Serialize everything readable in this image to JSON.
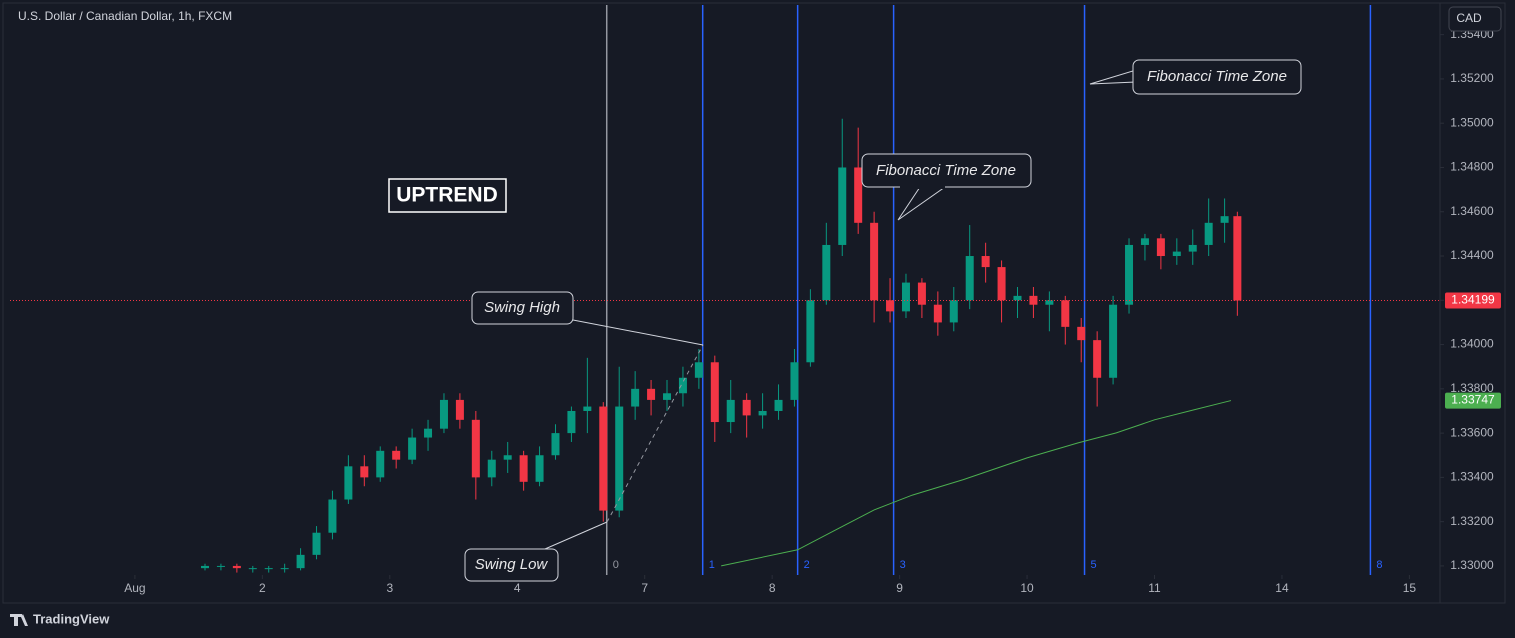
{
  "header": {
    "title": "U.S. Dollar / Canadian Dollar, 1h, FXCM",
    "currency": "CAD",
    "brand": "TradingView"
  },
  "annotations": {
    "trend": "UPTREND",
    "swing_high": "Swing High",
    "swing_low": "Swing Low",
    "fib_1": "Fibonacci Time Zone",
    "fib_2": "Fibonacci Time Zone"
  },
  "chart_data": {
    "type": "candlestick",
    "up_color": "#089981",
    "down_color": "#f23645",
    "x": [
      0.55,
      0.675,
      0.8,
      0.925,
      1.05,
      1.175,
      1.3,
      1.425,
      1.55,
      1.675,
      1.8,
      1.925,
      2.05,
      2.175,
      2.3,
      2.425,
      2.55,
      2.675,
      2.8,
      2.925,
      3.05,
      3.175,
      3.3,
      3.425,
      3.55,
      3.675,
      3.8,
      3.925,
      4.05,
      4.175,
      4.3,
      4.425,
      4.55,
      4.675,
      4.8,
      4.925,
      5.05,
      5.175,
      5.3,
      5.425,
      5.55,
      5.675,
      5.8,
      5.925,
      6.05,
      6.175,
      6.3,
      6.425,
      6.55,
      6.675,
      6.8,
      6.925,
      7.05,
      7.175,
      7.3,
      7.425,
      7.55,
      7.675,
      7.8,
      7.925,
      8.05,
      8.175,
      8.3,
      8.425,
      8.55,
      8.65
    ],
    "open": [
      1.3299,
      1.33,
      1.33,
      1.3299,
      1.3299,
      1.3299,
      1.3299,
      1.3305,
      1.3315,
      1.333,
      1.3345,
      1.334,
      1.3352,
      1.3348,
      1.3358,
      1.3362,
      1.3375,
      1.3366,
      1.334,
      1.3348,
      1.335,
      1.3338,
      1.335,
      1.336,
      1.337,
      1.3372,
      1.3325,
      1.3372,
      1.338,
      1.3375,
      1.3378,
      1.3385,
      1.3392,
      1.3365,
      1.3375,
      1.3368,
      1.337,
      1.3375,
      1.3392,
      1.342,
      1.3445,
      1.348,
      1.3455,
      1.342,
      1.3415,
      1.3428,
      1.3418,
      1.341,
      1.342,
      1.344,
      1.3435,
      1.342,
      1.3422,
      1.3418,
      1.342,
      1.3408,
      1.3402,
      1.3385,
      1.3418,
      1.3445,
      1.3448,
      1.344,
      1.3442,
      1.3445,
      1.3455,
      1.3458
    ],
    "high": [
      1.3301,
      1.3301,
      1.3301,
      1.33,
      1.33,
      1.3301,
      1.3308,
      1.3318,
      1.3334,
      1.335,
      1.335,
      1.3354,
      1.3354,
      1.3362,
      1.3366,
      1.3378,
      1.3378,
      1.337,
      1.3352,
      1.3356,
      1.3352,
      1.3354,
      1.3364,
      1.3372,
      1.3394,
      1.3374,
      1.339,
      1.3388,
      1.3384,
      1.3384,
      1.339,
      1.3398,
      1.3395,
      1.3384,
      1.3378,
      1.3378,
      1.3382,
      1.3398,
      1.3425,
      1.3455,
      1.3502,
      1.3498,
      1.346,
      1.343,
      1.3432,
      1.343,
      1.3424,
      1.3426,
      1.3454,
      1.3446,
      1.3438,
      1.3426,
      1.3426,
      1.3424,
      1.3422,
      1.3412,
      1.3406,
      1.3422,
      1.3448,
      1.345,
      1.345,
      1.3448,
      1.3452,
      1.3466,
      1.3466,
      1.346
    ],
    "low": [
      1.3298,
      1.3298,
      1.3297,
      1.3297,
      1.3297,
      1.3297,
      1.3298,
      1.3303,
      1.3312,
      1.3328,
      1.3336,
      1.3338,
      1.3344,
      1.3346,
      1.3352,
      1.336,
      1.3362,
      1.333,
      1.3336,
      1.3342,
      1.3334,
      1.3336,
      1.3348,
      1.3356,
      1.336,
      1.332,
      1.3322,
      1.3366,
      1.3368,
      1.337,
      1.3372,
      1.338,
      1.3356,
      1.336,
      1.3358,
      1.3362,
      1.3366,
      1.3372,
      1.339,
      1.3418,
      1.344,
      1.345,
      1.341,
      1.341,
      1.3412,
      1.3412,
      1.3404,
      1.3406,
      1.3416,
      1.3428,
      1.341,
      1.3412,
      1.3412,
      1.3406,
      1.34,
      1.3392,
      1.3372,
      1.3382,
      1.3414,
      1.3438,
      1.3434,
      1.3436,
      1.3436,
      1.344,
      1.3446,
      1.3413
    ],
    "close": [
      1.33,
      1.33,
      1.3299,
      1.3299,
      1.3299,
      1.3299,
      1.3305,
      1.3315,
      1.333,
      1.3345,
      1.334,
      1.3352,
      1.3348,
      1.3358,
      1.3362,
      1.3375,
      1.3366,
      1.334,
      1.3348,
      1.335,
      1.3338,
      1.335,
      1.336,
      1.337,
      1.3372,
      1.3325,
      1.3372,
      1.338,
      1.3375,
      1.3378,
      1.3385,
      1.3392,
      1.3365,
      1.3375,
      1.3368,
      1.337,
      1.3375,
      1.3392,
      1.342,
      1.3445,
      1.348,
      1.3455,
      1.342,
      1.3415,
      1.3428,
      1.3418,
      1.341,
      1.342,
      1.344,
      1.3435,
      1.342,
      1.3422,
      1.3418,
      1.342,
      1.3408,
      1.3402,
      1.3385,
      1.3418,
      1.3445,
      1.3448,
      1.344,
      1.3442,
      1.3445,
      1.3455,
      1.3458,
      1.34199
    ],
    "moving_average": {
      "color": "#4caf50",
      "x": [
        4.6,
        5.2,
        5.5,
        5.8,
        6.1,
        6.5,
        7.0,
        7.4,
        7.7,
        8.0,
        8.3,
        8.6
      ],
      "values": [
        1.33,
        1.33073,
        1.33163,
        1.33253,
        1.3332,
        1.3339,
        1.33488,
        1.33556,
        1.33601,
        1.3366,
        1.33704,
        1.33747
      ]
    },
    "fib_time_zones": {
      "x": [
        3.702,
        4.455,
        5.2,
        5.953,
        7.451,
        9.694
      ],
      "levels": [
        0,
        1,
        2,
        3,
        5,
        8
      ],
      "colors": [
        "#9598a1",
        "#2962ff",
        "#2962ff",
        "#2962ff",
        "#2962ff",
        "#2962ff"
      ]
    },
    "xlim": [
      -0.98,
      10.24
    ],
    "xticks": [
      {
        "value": 0,
        "label": "Aug"
      },
      {
        "value": 1,
        "label": "2"
      },
      {
        "value": 2,
        "label": "3"
      },
      {
        "value": 3,
        "label": "4"
      },
      {
        "value": 4,
        "label": "7"
      },
      {
        "value": 5,
        "label": "8"
      },
      {
        "value": 6,
        "label": "9"
      },
      {
        "value": 7,
        "label": "10"
      },
      {
        "value": 8,
        "label": "11"
      },
      {
        "value": 9,
        "label": "14"
      },
      {
        "value": 10,
        "label": "15"
      }
    ],
    "ylim": [
      1.32959,
      1.35534
    ],
    "yticks": [
      {
        "value": 1.33,
        "label": "1.33000"
      },
      {
        "value": 1.332,
        "label": "1.33200"
      },
      {
        "value": 1.334,
        "label": "1.33400"
      },
      {
        "value": 1.336,
        "label": "1.33600"
      },
      {
        "value": 1.338,
        "label": "1.33800"
      },
      {
        "value": 1.34,
        "label": "1.34000"
      },
      {
        "value": 1.342,
        "label": "1.34200"
      },
      {
        "value": 1.344,
        "label": "1.34400"
      },
      {
        "value": 1.346,
        "label": "1.34600"
      },
      {
        "value": 1.348,
        "label": "1.34800"
      },
      {
        "value": 1.35,
        "label": "1.35000"
      },
      {
        "value": 1.352,
        "label": "1.35200"
      },
      {
        "value": 1.354,
        "label": "1.35400"
      }
    ]
  }
}
